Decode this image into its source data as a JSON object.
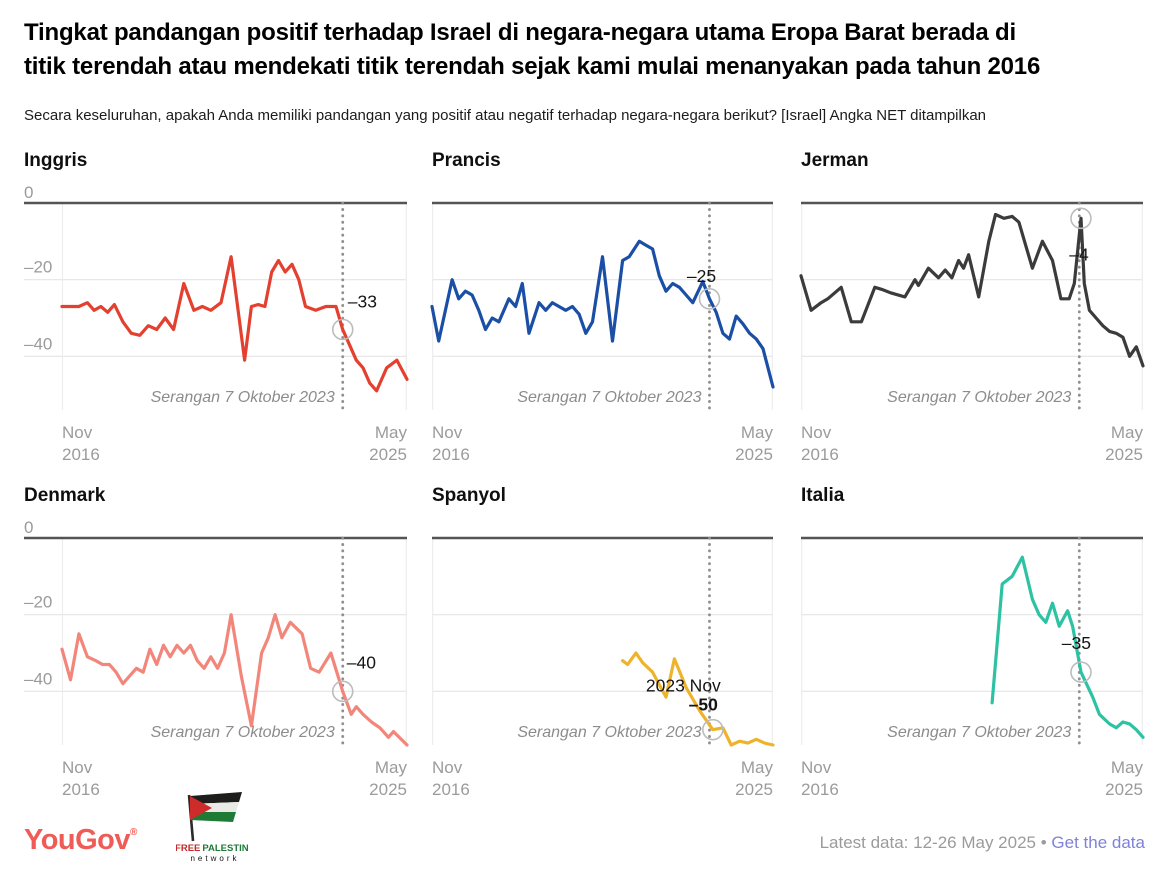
{
  "header": {
    "title_line1": "Tingkat pandangan positif terhadap Israel di negara-negara utama Eropa Barat berada di",
    "title_line2": "titik terendah atau mendekati titik terendah sejak kami mulai menanyakan pada tahun 2016",
    "subtitle": "Secara keseluruhan, apakah Anda memiliki pandangan yang positif atau negatif terhadap negara-negara berikut? [Israel] Angka NET ditampilkan"
  },
  "axis": {
    "x_left_line1": "Nov",
    "x_left_line2": "2016",
    "x_right_line1": "May",
    "x_right_line2": "2025",
    "y_ticks": [
      "0",
      "–20",
      "–40"
    ]
  },
  "event_label": "Serangan 7 Oktober 2023",
  "colors": {
    "grid": "#e4e4e4",
    "zero_line": "#545454",
    "event_line": "#8f8f8f",
    "axis_text": "#9b9b9b",
    "annotation": "#8c8c8c",
    "marker_ring": "#bcbcbc",
    "value_label": "#141414",
    "link": "#7f82d8",
    "yougov_logo": "#ef5b57"
  },
  "chart_data": [
    {
      "type": "line",
      "title": "Inggris",
      "color": "#e4402f",
      "ylim": [
        -54,
        0
      ],
      "x_range_months": [
        0,
        102
      ],
      "x_ticks": [
        "Nov 2016",
        "May 2025"
      ],
      "y_ticks": [
        "0",
        "–20",
        "–40"
      ],
      "event": {
        "month": 83,
        "label": "Serangan 7 Oktober 2023"
      },
      "marker": {
        "month": 83,
        "value": -33,
        "labels": [
          {
            "text": "–33",
            "bold": false
          }
        ]
      },
      "points": [
        [
          0,
          -27
        ],
        [
          2.5,
          -27
        ],
        [
          5,
          -27
        ],
        [
          7.5,
          -26
        ],
        [
          9.5,
          -28
        ],
        [
          11.5,
          -27
        ],
        [
          13.5,
          -28.5
        ],
        [
          15.5,
          -26.5
        ],
        [
          18,
          -31
        ],
        [
          20.5,
          -34
        ],
        [
          23,
          -34.5
        ],
        [
          25.5,
          -32
        ],
        [
          28,
          -33
        ],
        [
          30.5,
          -30
        ],
        [
          33,
          -33
        ],
        [
          36,
          -21
        ],
        [
          39,
          -28
        ],
        [
          41.5,
          -27
        ],
        [
          44,
          -28
        ],
        [
          47,
          -26
        ],
        [
          50,
          -14
        ],
        [
          54,
          -41
        ],
        [
          56,
          -27
        ],
        [
          58,
          -26.5
        ],
        [
          60,
          -27
        ],
        [
          62,
          -18
        ],
        [
          64,
          -15
        ],
        [
          66,
          -18
        ],
        [
          68,
          -16
        ],
        [
          70,
          -20
        ],
        [
          72,
          -27
        ],
        [
          75,
          -28
        ],
        [
          78,
          -27
        ],
        [
          81,
          -27
        ],
        [
          83,
          -33
        ],
        [
          85,
          -37
        ],
        [
          87,
          -41
        ],
        [
          89,
          -43
        ],
        [
          91,
          -47
        ],
        [
          93,
          -49
        ],
        [
          96,
          -43
        ],
        [
          99,
          -41
        ],
        [
          102,
          -46
        ]
      ]
    },
    {
      "type": "line",
      "title": "Prancis",
      "color": "#1b4fa5",
      "ylim": [
        -54,
        0
      ],
      "x_range_months": [
        0,
        102
      ],
      "x_ticks": [
        "Nov 2016",
        "May 2025"
      ],
      "y_ticks": [],
      "event": {
        "month": 83,
        "label": "Serangan 7 Oktober 2023"
      },
      "marker": {
        "month": 83,
        "value": -25,
        "labels": [
          {
            "text": "–25",
            "bold": false
          }
        ]
      },
      "points": [
        [
          0,
          -27
        ],
        [
          2,
          -36
        ],
        [
          6,
          -20
        ],
        [
          8,
          -25
        ],
        [
          10,
          -23
        ],
        [
          12,
          -24
        ],
        [
          14,
          -28
        ],
        [
          16,
          -33
        ],
        [
          18,
          -30
        ],
        [
          20,
          -31
        ],
        [
          23,
          -25
        ],
        [
          25,
          -27
        ],
        [
          27,
          -21
        ],
        [
          29,
          -34
        ],
        [
          32,
          -26
        ],
        [
          34,
          -28
        ],
        [
          36,
          -26
        ],
        [
          38,
          -27
        ],
        [
          40,
          -28
        ],
        [
          42,
          -27
        ],
        [
          44,
          -29
        ],
        [
          46,
          -34
        ],
        [
          48,
          -31
        ],
        [
          51,
          -14
        ],
        [
          54,
          -36
        ],
        [
          57,
          -15
        ],
        [
          59,
          -14
        ],
        [
          62,
          -10
        ],
        [
          64,
          -11
        ],
        [
          66,
          -12
        ],
        [
          68,
          -19
        ],
        [
          70,
          -23
        ],
        [
          72,
          -21
        ],
        [
          74,
          -22
        ],
        [
          76,
          -24
        ],
        [
          78,
          -26
        ],
        [
          81,
          -20.5
        ],
        [
          83,
          -25
        ],
        [
          85,
          -28.5
        ],
        [
          87,
          -34
        ],
        [
          89,
          -35.5
        ],
        [
          91,
          -29.5
        ],
        [
          93,
          -31.5
        ],
        [
          95,
          -34
        ],
        [
          97,
          -35.5
        ],
        [
          99,
          -38
        ],
        [
          102,
          -48
        ]
      ]
    },
    {
      "type": "line",
      "title": "Jerman",
      "color": "#3b3b3b",
      "ylim": [
        -54,
        0
      ],
      "x_range_months": [
        0,
        102
      ],
      "x_ticks": [
        "Nov 2016",
        "May 2025"
      ],
      "y_ticks": [],
      "event": {
        "month": 83,
        "label": "Serangan 7 Oktober 2023"
      },
      "marker": {
        "month": 83.5,
        "value": -4,
        "labels": [
          {
            "text": "–4",
            "bold": false
          }
        ]
      },
      "points": [
        [
          0,
          -19
        ],
        [
          3,
          -28
        ],
        [
          6,
          -26
        ],
        [
          8,
          -25
        ],
        [
          12,
          -22
        ],
        [
          15,
          -31
        ],
        [
          18,
          -31
        ],
        [
          22,
          -22
        ],
        [
          24,
          -22.5
        ],
        [
          27,
          -23.5
        ],
        [
          31,
          -24.5
        ],
        [
          34,
          -20
        ],
        [
          35,
          -21.5
        ],
        [
          38,
          -17
        ],
        [
          41,
          -19.5
        ],
        [
          43,
          -17.5
        ],
        [
          45,
          -19.5
        ],
        [
          47,
          -15
        ],
        [
          48.5,
          -17
        ],
        [
          50,
          -13.5
        ],
        [
          53,
          -24.5
        ],
        [
          56,
          -10
        ],
        [
          58,
          -3
        ],
        [
          60.5,
          -4
        ],
        [
          63,
          -3.5
        ],
        [
          65,
          -5
        ],
        [
          69,
          -17
        ],
        [
          72,
          -10
        ],
        [
          75,
          -15
        ],
        [
          77.5,
          -25
        ],
        [
          80,
          -25
        ],
        [
          81.5,
          -21
        ],
        [
          83.5,
          -4
        ],
        [
          84.5,
          -21
        ],
        [
          86,
          -28
        ],
        [
          88,
          -30
        ],
        [
          90,
          -32
        ],
        [
          92,
          -33.5
        ],
        [
          94,
          -34
        ],
        [
          96,
          -35
        ],
        [
          98,
          -40
        ],
        [
          100,
          -37.5
        ],
        [
          102,
          -42.5
        ]
      ]
    },
    {
      "type": "line",
      "title": "Denmark",
      "color": "#f2867a",
      "ylim": [
        -54,
        0
      ],
      "x_range_months": [
        0,
        102
      ],
      "x_ticks": [
        "Nov 2016",
        "May 2025"
      ],
      "y_ticks": [
        "0",
        "–20",
        "–40"
      ],
      "event": {
        "month": 83,
        "label": "Serangan 7 Oktober 2023"
      },
      "marker": {
        "month": 83,
        "value": -40,
        "labels": [
          {
            "text": "–40",
            "bold": false
          }
        ]
      },
      "points": [
        [
          0,
          -29
        ],
        [
          2.5,
          -37
        ],
        [
          5,
          -25
        ],
        [
          7.5,
          -31
        ],
        [
          10,
          -32
        ],
        [
          12,
          -33
        ],
        [
          14,
          -33
        ],
        [
          16,
          -35
        ],
        [
          18,
          -38
        ],
        [
          20,
          -36
        ],
        [
          22,
          -34
        ],
        [
          24,
          -35
        ],
        [
          26,
          -29
        ],
        [
          28,
          -33
        ],
        [
          30,
          -28
        ],
        [
          32,
          -31
        ],
        [
          34,
          -28
        ],
        [
          36,
          -30
        ],
        [
          38,
          -28
        ],
        [
          40,
          -32
        ],
        [
          42,
          -34
        ],
        [
          44,
          -31
        ],
        [
          46,
          -34
        ],
        [
          48,
          -30
        ],
        [
          50,
          -20
        ],
        [
          53,
          -36
        ],
        [
          56,
          -49
        ],
        [
          59,
          -30
        ],
        [
          61,
          -26
        ],
        [
          63,
          -20
        ],
        [
          65,
          -26
        ],
        [
          67.5,
          -22
        ],
        [
          71,
          -25
        ],
        [
          73.5,
          -34
        ],
        [
          76,
          -35
        ],
        [
          79.5,
          -30
        ],
        [
          83,
          -40
        ],
        [
          85.5,
          -46
        ],
        [
          87,
          -44
        ],
        [
          89,
          -46
        ],
        [
          91.5,
          -48
        ],
        [
          94,
          -49.5
        ],
        [
          96.5,
          -52
        ],
        [
          98,
          -50.5
        ],
        [
          102,
          -54
        ]
      ]
    },
    {
      "type": "line",
      "title": "Spanyol",
      "color": "#eeb32b",
      "ylim": [
        -54,
        0
      ],
      "x_range_months": [
        0,
        102
      ],
      "x_ticks": [
        "Nov 2016",
        "May 2025"
      ],
      "y_ticks": [],
      "event": {
        "month": 83,
        "label": "Serangan 7 Oktober 2023"
      },
      "marker": {
        "month": 84,
        "value": -50,
        "labels": [
          {
            "text": "2023 Nov",
            "bold": false
          },
          {
            "text": "–50",
            "bold": true
          }
        ]
      },
      "points": [
        [
          57,
          -32
        ],
        [
          58.5,
          -33
        ],
        [
          61,
          -30
        ],
        [
          63,
          -32.5
        ],
        [
          66,
          -35
        ],
        [
          70,
          -41.5
        ],
        [
          72.5,
          -31.5
        ],
        [
          76,
          -39
        ],
        [
          80,
          -45
        ],
        [
          84,
          -50
        ],
        [
          87,
          -49.5
        ],
        [
          89.5,
          -54
        ],
        [
          92,
          -53
        ],
        [
          94.5,
          -53.5
        ],
        [
          97,
          -52.5
        ],
        [
          99.5,
          -53.5
        ],
        [
          102,
          -54
        ]
      ]
    },
    {
      "type": "line",
      "title": "Italia",
      "color": "#2cc2a3",
      "ylim": [
        -54,
        0
      ],
      "x_range_months": [
        0,
        102
      ],
      "x_ticks": [
        "Nov 2016",
        "May 2025"
      ],
      "y_ticks": [],
      "event": {
        "month": 83,
        "label": "Serangan 7 Oktober 2023"
      },
      "marker": {
        "month": 83.5,
        "value": -35,
        "labels": [
          {
            "text": "–35",
            "bold": false
          }
        ]
      },
      "points": [
        [
          57,
          -43
        ],
        [
          60,
          -12
        ],
        [
          63,
          -10
        ],
        [
          66,
          -5
        ],
        [
          69,
          -16
        ],
        [
          71,
          -20
        ],
        [
          73,
          -22
        ],
        [
          75,
          -17
        ],
        [
          77,
          -23
        ],
        [
          79.5,
          -19
        ],
        [
          81,
          -23
        ],
        [
          83.5,
          -35
        ],
        [
          87,
          -41.5
        ],
        [
          89,
          -46
        ],
        [
          92,
          -48.5
        ],
        [
          94,
          -49.5
        ],
        [
          96,
          -48
        ],
        [
          98,
          -48.5
        ],
        [
          100,
          -50
        ],
        [
          102,
          -52
        ]
      ]
    }
  ],
  "footer": {
    "yougov_logo": "YouGov",
    "registered_mark": "®",
    "fpn_logo": {
      "free": "FREE",
      "palestine": "PALESTINE",
      "network": "network"
    },
    "latest_data": "Latest data: 12-26 May 2025",
    "bullet": "•",
    "link": "Get the data"
  }
}
